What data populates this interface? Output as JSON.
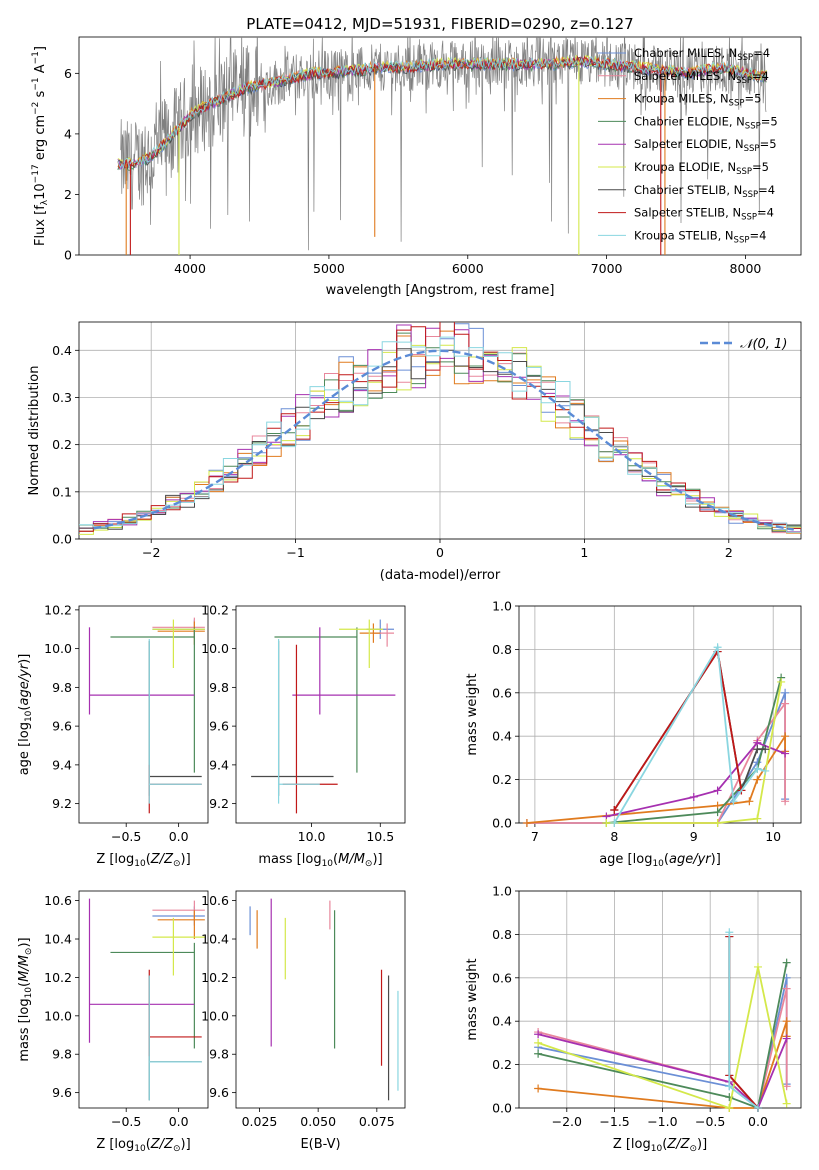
{
  "title": "PLATE=0412, MJD=51931, FIBERID=0290, z=0.127",
  "colors": {
    "Chabrier MILES": "#6b8fd6",
    "Salpeter MILES": "#e8879c",
    "Kroupa MILES": "#e07b1f",
    "Chabrier ELODIE": "#4d8a5a",
    "Salpeter ELODIE": "#a630b0",
    "Kroupa ELODIE": "#d4e84a",
    "Chabrier STELIB": "#4a4a4a",
    "Salpeter STELIB": "#c01818",
    "Kroupa STELIB": "#8ad6e0",
    "data": "#808080",
    "normal": "#5b8bd6"
  },
  "chart_data": [
    {
      "id": "spectrum",
      "type": "line",
      "title": "PLATE=0412, MJD=51931, FIBERID=0290, z=0.127",
      "xlabel": "wavelength [Angstrom, rest frame]",
      "ylabel": "Flux [f_λ 10^-17 erg cm^-2 s^-1 A^-1]",
      "xlim": [
        3200,
        8400
      ],
      "ylim": [
        0,
        7.2
      ],
      "xticks": [
        4000,
        5000,
        6000,
        7000,
        8000
      ],
      "yticks": [
        0,
        2,
        4,
        6
      ],
      "legend_position": "right",
      "legend": [
        "Chabrier MILES, N_SSP=4",
        "Salpeter MILES, N_SSP=4",
        "Kroupa MILES, N_SSP=5",
        "Chabrier ELODIE, N_SSP=5",
        "Salpeter ELODIE, N_SSP=5",
        "Kroupa ELODIE, N_SSP=5",
        "Chabrier STELIB, N_SSP=4",
        "Salpeter STELIB, N_SSP=4",
        "Kroupa STELIB, N_SSP=4"
      ],
      "continuum_x": [
        3500,
        3600,
        3700,
        3800,
        3900,
        4000,
        4100,
        4200,
        4300,
        4400,
        4500,
        4600,
        4700,
        4800,
        4900,
        5000,
        5200,
        5400,
        5600,
        5800,
        6000,
        6200,
        6400,
        6600,
        6800,
        7000,
        7200,
        7400,
        7600,
        7800,
        8000,
        8100
      ],
      "continuum_y": [
        3.0,
        3.0,
        3.2,
        3.6,
        4.1,
        4.6,
        4.9,
        5.1,
        5.3,
        5.5,
        5.6,
        5.7,
        5.8,
        5.9,
        6.0,
        6.0,
        6.1,
        6.2,
        6.2,
        6.3,
        6.3,
        6.3,
        6.3,
        6.3,
        6.4,
        6.3,
        6.2,
        6.1,
        6.0,
        6.2,
        6.0,
        5.9
      ]
    },
    {
      "id": "residuals",
      "type": "histogram",
      "xlabel": "(data-model)/error",
      "ylabel": "Normed distribution",
      "xlim": [
        -2.5,
        2.5
      ],
      "ylim": [
        0,
        0.46
      ],
      "xticks": [
        -2,
        -1,
        0,
        1,
        2
      ],
      "yticks": [
        0.0,
        0.1,
        0.2,
        0.3,
        0.4
      ],
      "bin_width": 0.1,
      "legend": [
        "𝒩(0, 1)"
      ],
      "legend_position": "upper right",
      "grid": true
    },
    {
      "id": "age_vs_Z",
      "type": "errorbar",
      "xlabel": "Z [log10(Z/Z⊙)]",
      "ylabel": "age [log10(age/yr)]",
      "xlim": [
        -0.95,
        0.28
      ],
      "ylim": [
        9.1,
        10.22
      ],
      "xticks": [
        -0.5,
        0.0
      ],
      "yticks": [
        9.2,
        9.4,
        9.6,
        9.8,
        10.0,
        10.2
      ],
      "points": [
        {
          "model": "Chabrier MILES",
          "x": 0.15,
          "y": 10.1,
          "xerr": [
            0.4,
            0.1
          ],
          "yerr": [
            0.05,
            0.05
          ]
        },
        {
          "model": "Salpeter MILES",
          "x": 0.15,
          "y": 10.11,
          "xerr": [
            0.4,
            0.1
          ],
          "yerr": [
            0.05,
            0.05
          ]
        },
        {
          "model": "Kroupa MILES",
          "x": 0.15,
          "y": 10.09,
          "xerr": [
            0.35,
            0.1
          ],
          "yerr": [
            0.07,
            0.05
          ]
        },
        {
          "model": "Chabrier ELODIE",
          "x": 0.15,
          "y": 10.06,
          "xerr": [
            0.8,
            0.0
          ],
          "yerr": [
            0.7,
            0.05
          ]
        },
        {
          "model": "Salpeter ELODIE",
          "x": -0.85,
          "y": 9.76,
          "xerr": [
            0.0,
            1.0
          ],
          "yerr": [
            0.1,
            0.35
          ]
        },
        {
          "model": "Kroupa ELODIE",
          "x": -0.05,
          "y": 10.1,
          "xerr": [
            0.2,
            0.3
          ],
          "yerr": [
            0.2,
            0.05
          ]
        },
        {
          "model": "Chabrier STELIB",
          "x": -0.28,
          "y": 9.34,
          "xerr": [
            0.0,
            0.5
          ],
          "yerr": [
            0.1,
            0.7
          ]
        },
        {
          "model": "Salpeter STELIB",
          "x": -0.28,
          "y": 9.3,
          "xerr": [
            0.0,
            0.5
          ],
          "yerr": [
            0.15,
            0.1
          ]
        },
        {
          "model": "Kroupa STELIB",
          "x": -0.28,
          "y": 9.3,
          "xerr": [
            0.0,
            0.5
          ],
          "yerr": [
            0.1,
            0.75
          ]
        }
      ]
    },
    {
      "id": "age_vs_mass",
      "type": "errorbar",
      "xlabel": "mass [log10(M/M⊙)]",
      "ylabel": "",
      "xlim": [
        9.45,
        10.68
      ],
      "ylim": [
        9.1,
        10.22
      ],
      "xticks": [
        10.0,
        10.5
      ],
      "yticks": [
        9.2,
        9.4,
        9.6,
        9.8,
        10.0,
        10.2
      ],
      "points": [
        {
          "model": "Chabrier MILES",
          "x": 10.5,
          "y": 10.1,
          "xerr": [
            0.1,
            0.1
          ],
          "yerr": [
            0.05,
            0.05
          ]
        },
        {
          "model": "Salpeter MILES",
          "x": 10.55,
          "y": 10.08,
          "xerr": [
            0.1,
            0.05
          ],
          "yerr": [
            0.07,
            0.05
          ]
        },
        {
          "model": "Kroupa MILES",
          "x": 10.45,
          "y": 10.08,
          "xerr": [
            0.1,
            0.05
          ],
          "yerr": [
            0.05,
            0.05
          ]
        },
        {
          "model": "Chabrier ELODIE",
          "x": 10.33,
          "y": 10.06,
          "xerr": [
            0.6,
            0.0
          ],
          "yerr": [
            0.7,
            0.05
          ]
        },
        {
          "model": "Salpeter ELODIE",
          "x": 10.06,
          "y": 9.76,
          "xerr": [
            0.2,
            0.55
          ],
          "yerr": [
            0.1,
            0.35
          ]
        },
        {
          "model": "Kroupa ELODIE",
          "x": 10.42,
          "y": 10.1,
          "xerr": [
            0.22,
            0.1
          ],
          "yerr": [
            0.2,
            0.05
          ]
        },
        {
          "model": "Chabrier STELIB",
          "x": 9.76,
          "y": 9.34,
          "xerr": [
            0.2,
            0.4
          ],
          "yerr": [
            0.1,
            0.7
          ]
        },
        {
          "model": "Salpeter STELIB",
          "x": 9.89,
          "y": 9.3,
          "xerr": [
            0.1,
            0.3
          ],
          "yerr": [
            0.15,
            0.72
          ]
        },
        {
          "model": "Kroupa STELIB",
          "x": 9.76,
          "y": 9.3,
          "xerr": [
            0.0,
            0.3
          ],
          "yerr": [
            0.1,
            0.75
          ]
        }
      ]
    },
    {
      "id": "weight_vs_age",
      "type": "line",
      "xlabel": "age [log10(age/yr)]",
      "ylabel": "mass weight",
      "xlim": [
        6.8,
        10.35
      ],
      "ylim": [
        0,
        1.0
      ],
      "xticks": [
        7,
        8,
        9,
        10
      ],
      "yticks": [
        0.0,
        0.2,
        0.4,
        0.6,
        0.8,
        1.0
      ],
      "grid": true,
      "series": [
        {
          "model": "Chabrier MILES",
          "x": [
            6.9,
            9.3,
            9.8,
            10.15,
            10.15
          ],
          "y": [
            0.0,
            0.0,
            0.28,
            0.6,
            0.11
          ]
        },
        {
          "model": "Salpeter MILES",
          "x": [
            6.9,
            9.3,
            9.8,
            10.15,
            10.15
          ],
          "y": [
            0.0,
            0.0,
            0.38,
            0.55,
            0.1
          ]
        },
        {
          "model": "Kroupa MILES",
          "x": [
            6.9,
            9.3,
            9.7,
            9.8,
            10.15,
            10.15
          ],
          "y": [
            0.0,
            0.08,
            0.1,
            0.2,
            0.4,
            0.33
          ]
        },
        {
          "model": "Chabrier ELODIE",
          "x": [
            7.9,
            9.3,
            9.8,
            10.1
          ],
          "y": [
            0.0,
            0.05,
            0.25,
            0.67
          ]
        },
        {
          "model": "Salpeter ELODIE",
          "x": [
            7.9,
            9.0,
            9.3,
            9.8,
            10.15
          ],
          "y": [
            0.03,
            0.12,
            0.15,
            0.37,
            0.32
          ]
        },
        {
          "model": "Kroupa ELODIE",
          "x": [
            7.9,
            9.3,
            9.8,
            10.1
          ],
          "y": [
            0.0,
            0.0,
            0.02,
            0.65
          ]
        },
        {
          "model": "Chabrier STELIB",
          "x": [
            8.0,
            9.3,
            9.6,
            9.8,
            9.9
          ],
          "y": [
            0.06,
            0.79,
            0.15,
            0.34,
            0.34
          ]
        },
        {
          "model": "Salpeter STELIB",
          "x": [
            8.0,
            9.3,
            9.6
          ],
          "y": [
            0.06,
            0.79,
            0.15
          ]
        },
        {
          "model": "Kroupa STELIB",
          "x": [
            8.0,
            9.3,
            9.5,
            9.8,
            9.9
          ],
          "y": [
            0.0,
            0.81,
            0.1,
            0.25,
            0.24
          ]
        }
      ]
    },
    {
      "id": "mass_vs_Z",
      "type": "errorbar",
      "xlabel": "Z [log10(Z/Z⊙)]",
      "ylabel": "mass [log10(M/M⊙)]",
      "xlim": [
        -0.95,
        0.28
      ],
      "ylim": [
        9.52,
        10.65
      ],
      "xticks": [
        -0.5,
        0.0
      ],
      "yticks": [
        9.6,
        9.8,
        10.0,
        10.2,
        10.4,
        10.6
      ],
      "points": [
        {
          "model": "Chabrier MILES",
          "x": 0.15,
          "y": 10.52,
          "xerr": [
            0.4,
            0.1
          ],
          "yerr": [
            0.05,
            0.05
          ]
        },
        {
          "model": "Salpeter MILES",
          "x": 0.15,
          "y": 10.55,
          "xerr": [
            0.4,
            0.1
          ],
          "yerr": [
            0.05,
            0.05
          ]
        },
        {
          "model": "Kroupa MILES",
          "x": 0.15,
          "y": 10.5,
          "xerr": [
            0.35,
            0.1
          ],
          "yerr": [
            0.1,
            0.05
          ]
        },
        {
          "model": "Chabrier ELODIE",
          "x": 0.15,
          "y": 10.33,
          "xerr": [
            0.8,
            0.0
          ],
          "yerr": [
            0.5,
            0.05
          ]
        },
        {
          "model": "Salpeter ELODIE",
          "x": -0.85,
          "y": 10.06,
          "xerr": [
            0.0,
            1.0
          ],
          "yerr": [
            0.2,
            0.55
          ]
        },
        {
          "model": "Kroupa ELODIE",
          "x": -0.05,
          "y": 10.41,
          "xerr": [
            0.2,
            0.3
          ],
          "yerr": [
            0.2,
            0.1
          ]
        },
        {
          "model": "Chabrier STELIB",
          "x": -0.28,
          "y": 9.76,
          "xerr": [
            0.0,
            0.5
          ],
          "yerr": [
            0.2,
            0.45
          ]
        },
        {
          "model": "Salpeter STELIB",
          "x": -0.28,
          "y": 9.89,
          "xerr": [
            0.0,
            0.5
          ],
          "yerr": [
            0.1,
            0.35
          ]
        },
        {
          "model": "Kroupa STELIB",
          "x": -0.28,
          "y": 9.76,
          "xerr": [
            0.0,
            0.5
          ],
          "yerr": [
            0.2,
            0.45
          ]
        }
      ]
    },
    {
      "id": "mass_vs_ebv",
      "type": "errorbar",
      "xlabel": "E(B-V)",
      "ylabel": "",
      "xlim": [
        0.015,
        0.087
      ],
      "ylim": [
        9.52,
        10.65
      ],
      "xticks": [
        0.025,
        0.05,
        0.075
      ],
      "yticks": [
        9.6,
        9.8,
        10.0,
        10.2,
        10.4,
        10.6
      ],
      "points": [
        {
          "model": "Chabrier MILES",
          "x": 0.021,
          "y": 10.52,
          "yerr": [
            0.1,
            0.05
          ]
        },
        {
          "model": "Salpeter MILES",
          "x": 0.055,
          "y": 10.55,
          "yerr": [
            0.1,
            0.05
          ]
        },
        {
          "model": "Kroupa MILES",
          "x": 0.024,
          "y": 10.5,
          "yerr": [
            0.15,
            0.05
          ]
        },
        {
          "model": "Chabrier ELODIE",
          "x": 0.057,
          "y": 10.33,
          "yerr": [
            0.5,
            0.22
          ]
        },
        {
          "model": "Salpeter ELODIE",
          "x": 0.03,
          "y": 10.06,
          "yerr": [
            0.22,
            0.55
          ]
        },
        {
          "model": "Kroupa ELODIE",
          "x": 0.036,
          "y": 10.41,
          "yerr": [
            0.22,
            0.1
          ]
        },
        {
          "model": "Chabrier STELIB",
          "x": 0.08,
          "y": 9.76,
          "yerr": [
            0.2,
            0.45
          ]
        },
        {
          "model": "Salpeter STELIB",
          "x": 0.077,
          "y": 9.89,
          "yerr": [
            0.15,
            0.35
          ]
        },
        {
          "model": "Kroupa STELIB",
          "x": 0.084,
          "y": 9.76,
          "yerr": [
            0.15,
            0.37
          ]
        }
      ]
    },
    {
      "id": "weight_vs_Z",
      "type": "line",
      "xlabel": "Z [log10(Z/Z⊙)]",
      "ylabel": "mass weight",
      "xlim": [
        -2.5,
        0.45
      ],
      "ylim": [
        0,
        1.0
      ],
      "xticks": [
        -2.0,
        -1.5,
        -1.0,
        -0.5,
        0.0
      ],
      "yticks": [
        0.0,
        0.2,
        0.4,
        0.6,
        0.8,
        1.0
      ],
      "grid": true,
      "series": [
        {
          "model": "Chabrier MILES",
          "x": [
            -2.3,
            -0.3,
            0.0,
            0.3,
            0.3
          ],
          "y": [
            0.28,
            0.1,
            0.0,
            0.6,
            0.11
          ]
        },
        {
          "model": "Salpeter MILES",
          "x": [
            -2.3,
            -0.3,
            0.0,
            0.3,
            0.3
          ],
          "y": [
            0.35,
            0.12,
            0.0,
            0.55,
            0.1
          ]
        },
        {
          "model": "Kroupa MILES",
          "x": [
            -2.3,
            -0.3,
            0.0,
            0.3,
            0.3
          ],
          "y": [
            0.09,
            0.0,
            0.0,
            0.4,
            0.33
          ]
        },
        {
          "model": "Chabrier ELODIE",
          "x": [
            -2.3,
            -0.3,
            0.0,
            0.3
          ],
          "y": [
            0.25,
            0.05,
            0.0,
            0.67
          ]
        },
        {
          "model": "Salpeter ELODIE",
          "x": [
            -2.3,
            -0.3,
            0.0,
            0.3
          ],
          "y": [
            0.34,
            0.12,
            0.0,
            0.32
          ]
        },
        {
          "model": "Kroupa ELODIE",
          "x": [
            -2.3,
            -0.3,
            0.0,
            0.3
          ],
          "y": [
            0.3,
            0.0,
            0.65,
            0.02
          ]
        },
        {
          "model": "Chabrier STELIB",
          "x": [
            -0.3,
            -0.3,
            0.0
          ],
          "y": [
            0.79,
            0.15,
            0.0
          ]
        },
        {
          "model": "Salpeter STELIB",
          "x": [
            -0.3,
            -0.3,
            0.0
          ],
          "y": [
            0.79,
            0.15,
            0.0
          ]
        },
        {
          "model": "Kroupa STELIB",
          "x": [
            -0.3,
            -0.3,
            0.0
          ],
          "y": [
            0.81,
            0.1,
            0.0
          ]
        }
      ]
    }
  ]
}
